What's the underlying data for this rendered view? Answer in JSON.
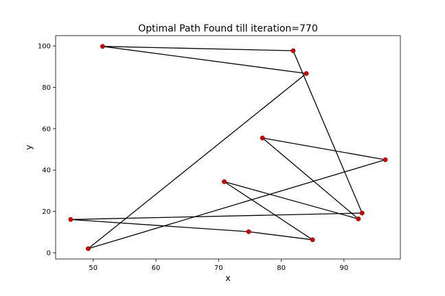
{
  "chart_data": {
    "type": "line",
    "title": "Optimal Path Found till iteration=770",
    "xlabel": "x",
    "ylabel": "y",
    "xlim": [
      44.0,
      99.0
    ],
    "ylim": [
      -3.0,
      105.0
    ],
    "xticks": [
      50,
      60,
      70,
      80,
      90
    ],
    "yticks": [
      0,
      20,
      40,
      60,
      80,
      100
    ],
    "grid": false,
    "line_color": "#000000",
    "marker_color": "#cc0000",
    "series": [
      {
        "path": [
          {
            "x": 51.5,
            "y": 99.8
          },
          {
            "x": 81.9,
            "y": 97.7
          },
          {
            "x": 92.9,
            "y": 19.2
          },
          {
            "x": 46.4,
            "y": 16.1
          },
          {
            "x": 74.8,
            "y": 10.2
          },
          {
            "x": 85.0,
            "y": 6.3
          },
          {
            "x": 70.9,
            "y": 34.4
          },
          {
            "x": 92.3,
            "y": 16.4
          },
          {
            "x": 77.0,
            "y": 55.5
          },
          {
            "x": 96.6,
            "y": 45.0
          },
          {
            "x": 49.2,
            "y": 2.0
          },
          {
            "x": 84.0,
            "y": 86.7
          },
          {
            "x": 51.5,
            "y": 99.8
          }
        ]
      }
    ]
  }
}
